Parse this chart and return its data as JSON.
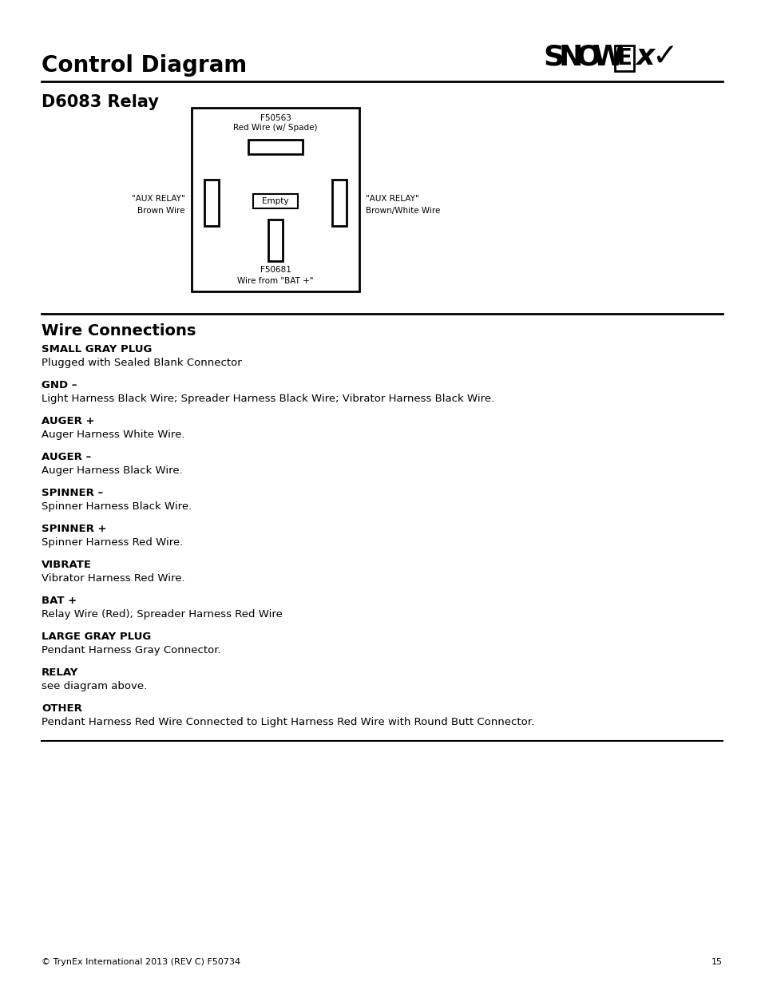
{
  "title": "Control Diagram",
  "subtitle": "D6083 Relay",
  "bg_color": "#ffffff",
  "line_color": "#000000",
  "section_title": "Wire Connections",
  "wire_entries": [
    {
      "header": "SMALL GRAY PLUG",
      "body": "Plugged with Sealed Blank Connector"
    },
    {
      "header": "GND –",
      "body": "Light Harness Black Wire; Spreader Harness Black Wire; Vibrator Harness Black Wire."
    },
    {
      "header": "AUGER +",
      "body": "Auger Harness White Wire."
    },
    {
      "header": "AUGER –",
      "body": "Auger Harness Black Wire."
    },
    {
      "header": "SPINNER –",
      "body": "Spinner Harness Black Wire."
    },
    {
      "header": "SPINNER +",
      "body": "Spinner Harness Red Wire."
    },
    {
      "header": "VIBRATE",
      "body": "Vibrator Harness Red Wire."
    },
    {
      "header": "BAT +",
      "body": "Relay Wire (Red); Spreader Harness Red Wire"
    },
    {
      "header": "LARGE GRAY PLUG",
      "body": "Pendant Harness Gray Connector."
    },
    {
      "header": "RELAY",
      "body": "see diagram above."
    },
    {
      "header": "OTHER",
      "body": "Pendant Harness Red Wire Connected to Light Harness Red Wire with Round Butt Connector."
    }
  ],
  "footer": "© TrynEx International 2013 (REV C) F50734",
  "page_num": "15"
}
